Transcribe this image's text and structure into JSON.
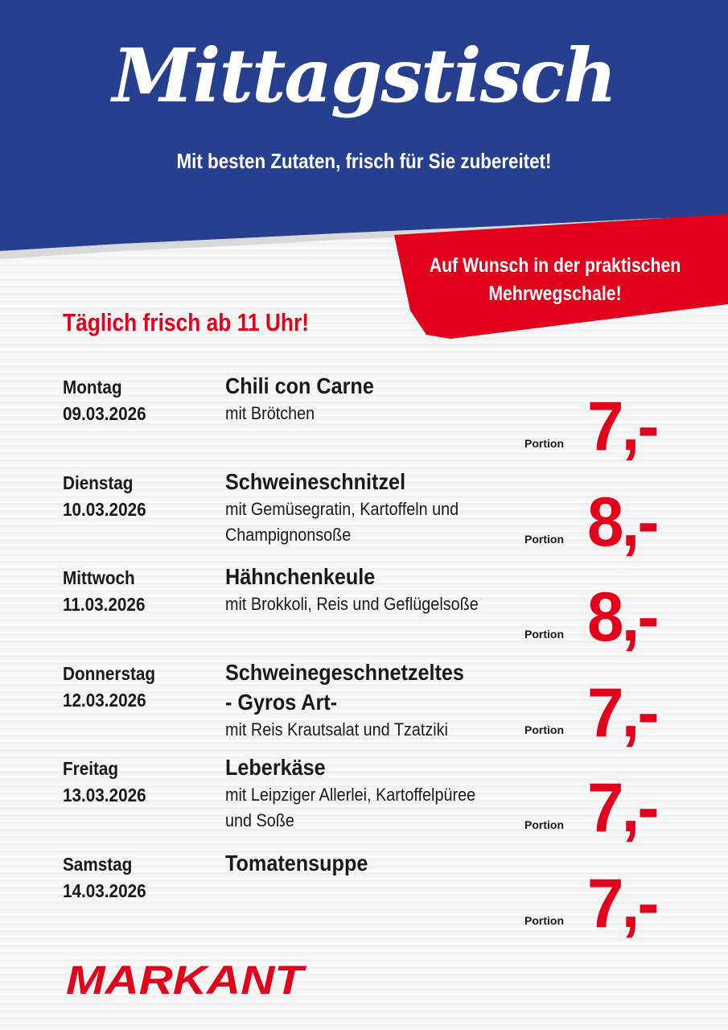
{
  "header": {
    "title": "Mittagstisch",
    "subtitle": "Mit besten Zutaten, frisch für Sie zubereitet!"
  },
  "banner": {
    "text": "Auf Wunsch in der praktischen Mehrwegschale!"
  },
  "daily_note": "Täglich frisch ab 11 Uhr!",
  "colors": {
    "blue": "#26408f",
    "red": "#e2001a"
  },
  "menu": [
    {
      "day": "Montag",
      "date": "09.03.2026",
      "dish": "Chili con Carne",
      "desc": "mit Brötchen",
      "unit": "Portion",
      "price": "7,-"
    },
    {
      "day": "Dienstag",
      "date": "10.03.2026",
      "dish": "Schweineschnitzel",
      "desc": "mit Gemüsegratin, Kartoffeln und\nChampignonsoße",
      "unit": "Portion",
      "price": "8,-"
    },
    {
      "day": "Mittwoch",
      "date": "11.03.2026",
      "dish": "Hähnchenkeule",
      "desc": "mit Brokkoli, Reis und Geflügelsoße",
      "unit": "Portion",
      "price": "8,-"
    },
    {
      "day": "Donnerstag",
      "date": "12.03.2026",
      "dish": "Schweinegeschnetzeltes\n- Gyros Art-",
      "desc": "mit Reis Krautsalat und Tzatziki",
      "unit": "Portion",
      "price": "7,-"
    },
    {
      "day": "Freitag",
      "date": "13.03.2026",
      "dish": "Leberkäse",
      "desc": "mit Leipziger Allerlei, Kartoffelpüree\nund Soße",
      "unit": "Portion",
      "price": "7,-"
    },
    {
      "day": "Samstag",
      "date": "14.03.2026",
      "dish": "Tomatensuppe",
      "desc": "",
      "unit": "Portion",
      "price": "7,-"
    }
  ],
  "logo": {
    "text": "MARKANT"
  }
}
